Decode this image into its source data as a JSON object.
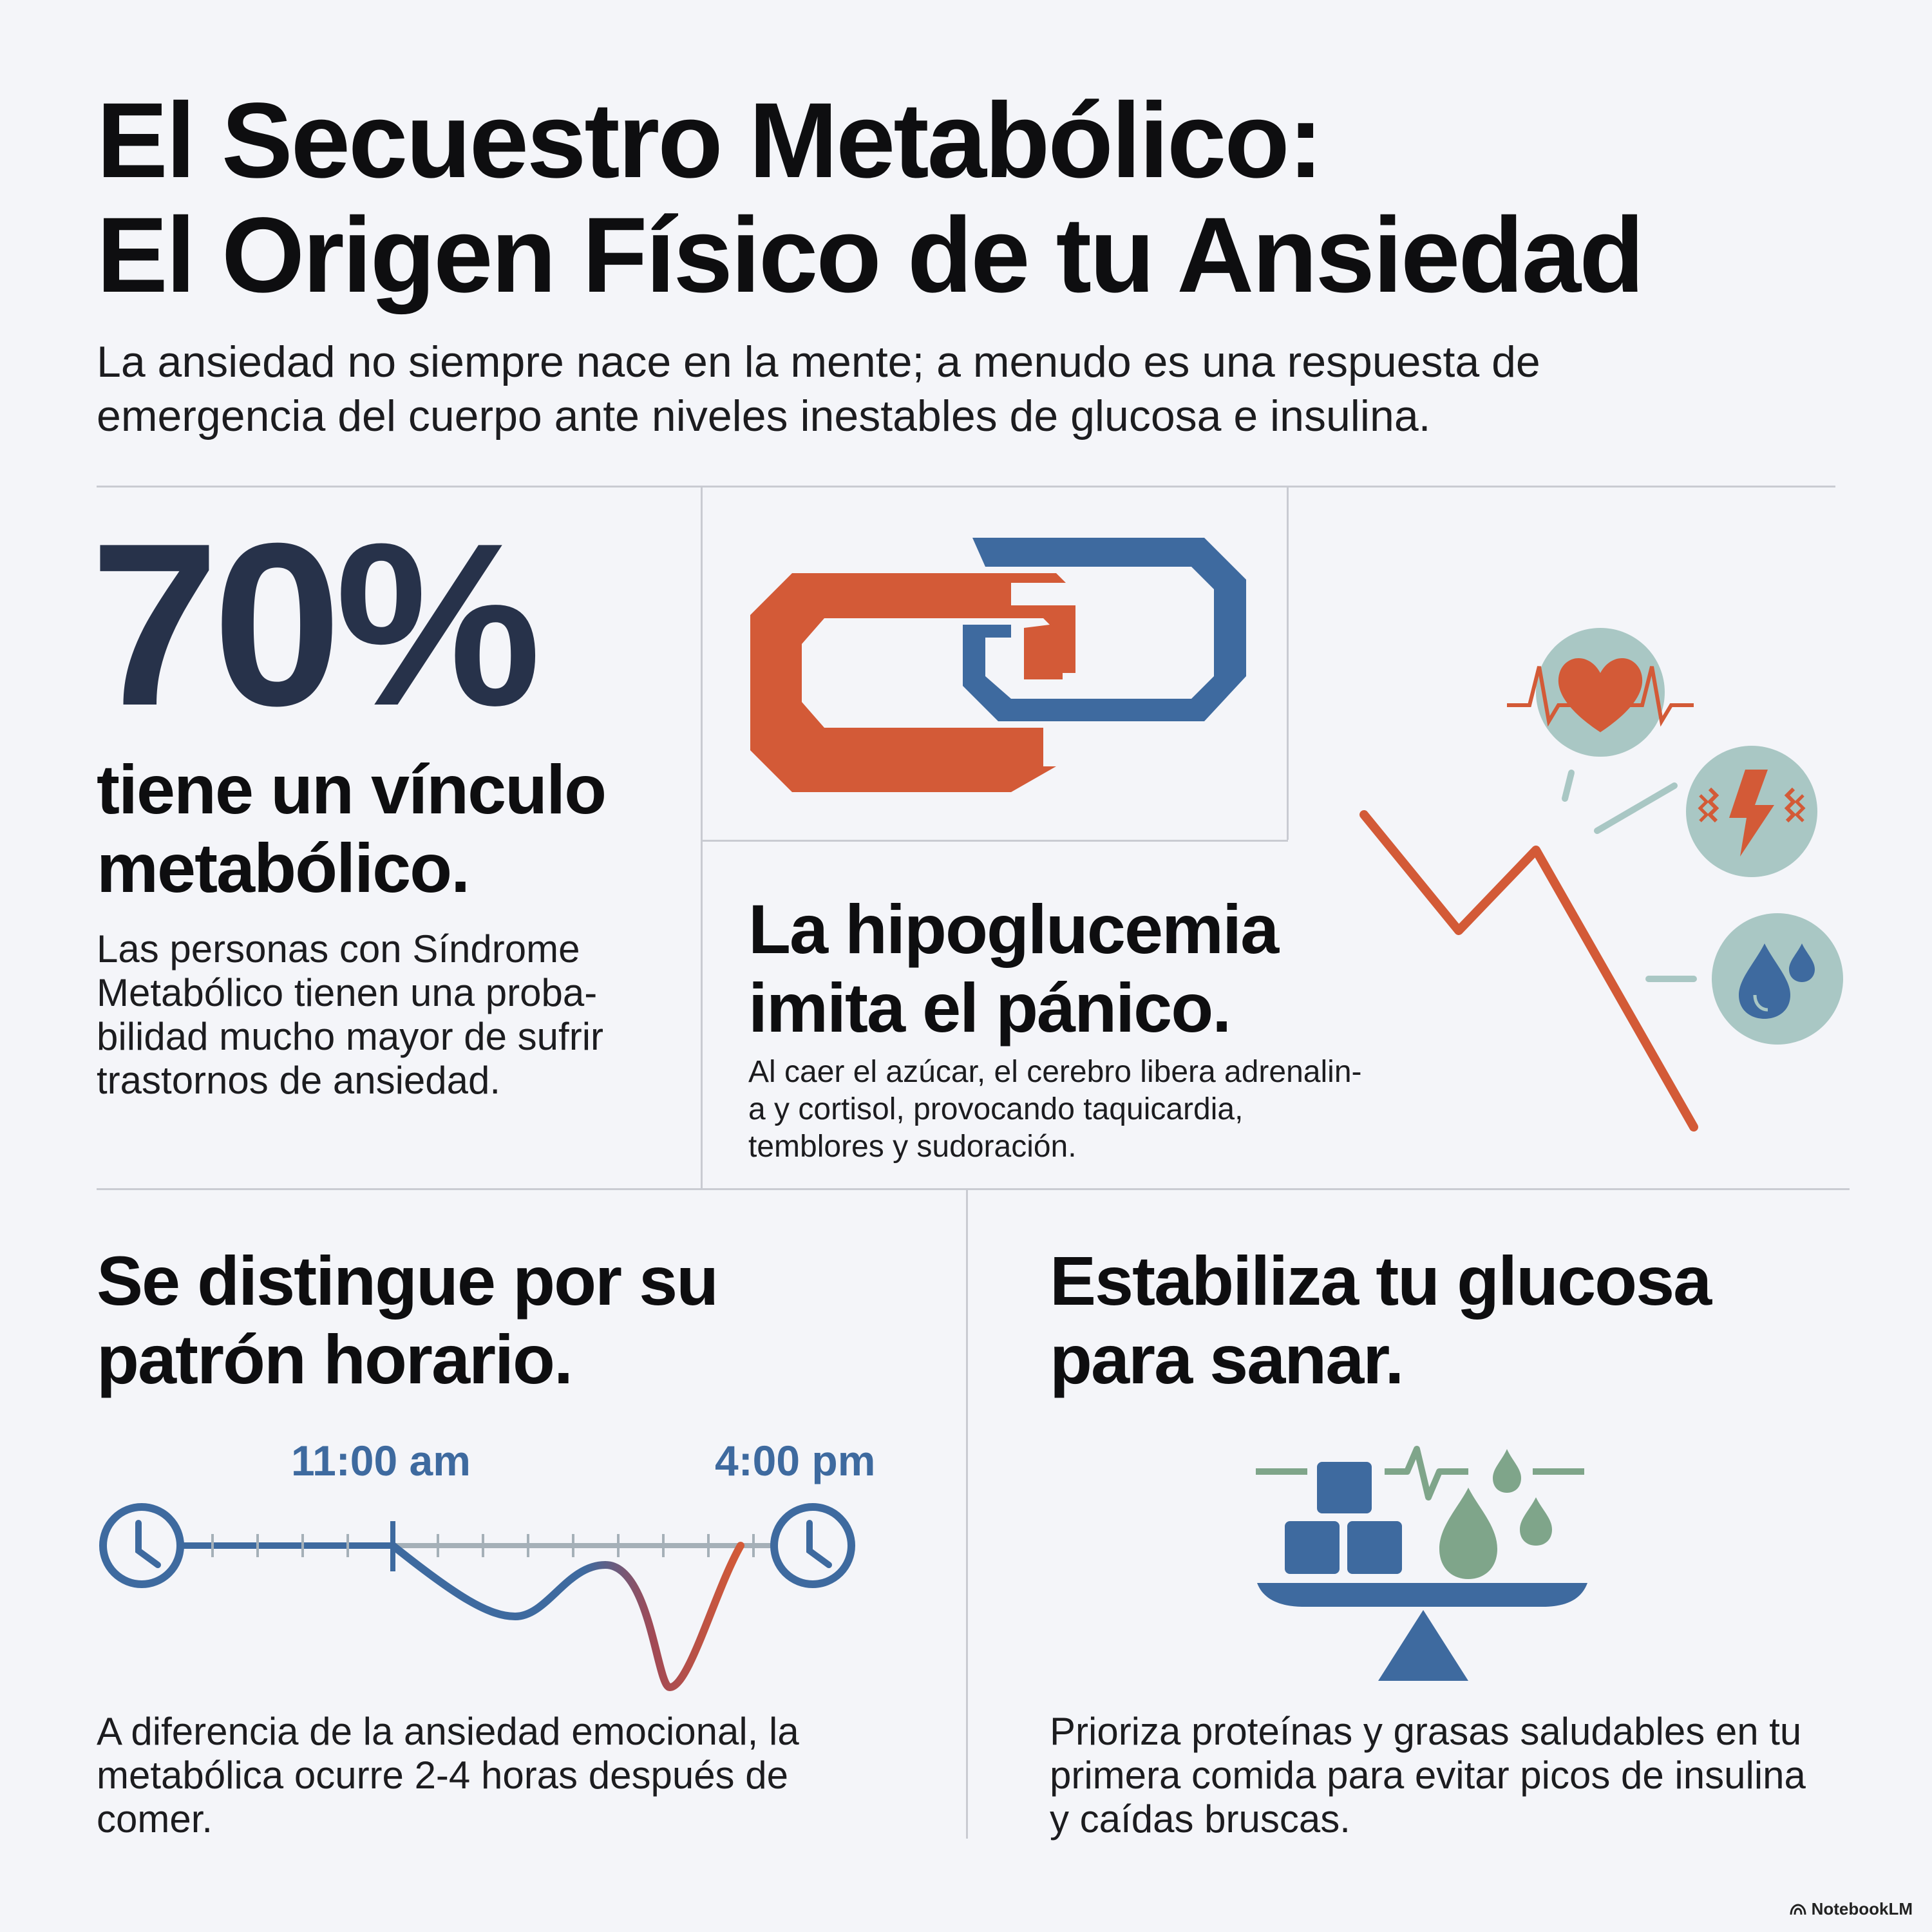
{
  "header": {
    "title_line1": "El Secuestro Metabólico:",
    "title_line2": "El Origen Físico de tu Ansiedad",
    "subtitle_line1": "La ansiedad no siempre nace en la mente; a menudo es una respuesta de",
    "subtitle_line2": "emergencia del cuerpo ante niveles inestables de glucosa e insulina."
  },
  "stat": {
    "value": "70%",
    "headline_line1": "tiene un vínculo",
    "headline_line2": "metabólico.",
    "body_line1": "Las personas con Síndrome",
    "body_line2": "Metabólico tienen una proba-",
    "body_line3": "bilidad mucho mayor de sufrir",
    "body_line4": "trastornos de ansiedad."
  },
  "hypoglycemia": {
    "headline_line1": "La hipoglucemia",
    "headline_line2": "imita el pánico.",
    "body_line1": "Al caer el azúcar, el cerebro libera adrenalin-",
    "body_line2": "a  y cortisol, provocando taquicardia,",
    "body_line3": "temblores y sudoración."
  },
  "pattern": {
    "headline_line1": "Se distingue por su",
    "headline_line2": "patrón horario.",
    "time_start": "11:00 am",
    "time_end": "4:00 pm",
    "body_line1": "A diferencia de la ansiedad emocional, la",
    "body_line2": "metabólica ocurre 2-4 horas después de",
    "body_line3": "comer."
  },
  "stabilize": {
    "headline_line1": "Estabiliza tu glucosa",
    "headline_line2": "para sanar.",
    "body_line1": "Prioriza proteínas y grasas saludables en tu",
    "body_line2": "primera comida para evitar picos de insulina",
    "body_line3": "y caídas bruscas."
  },
  "icons": {
    "chain": "chain-link-icon",
    "heart": "heart-pulse-icon",
    "shock": "lightning-shake-icon",
    "sweat": "water-drops-icon",
    "clock": "clock-icon",
    "balance": "balance-scale-icon"
  },
  "colors": {
    "navy": "#27324a",
    "blue": "#3e6a9f",
    "orange": "#d35a37",
    "teal_bg": "#a9c7c4",
    "green": "#7fa58a"
  },
  "branding": {
    "label": "NotebookLM"
  }
}
